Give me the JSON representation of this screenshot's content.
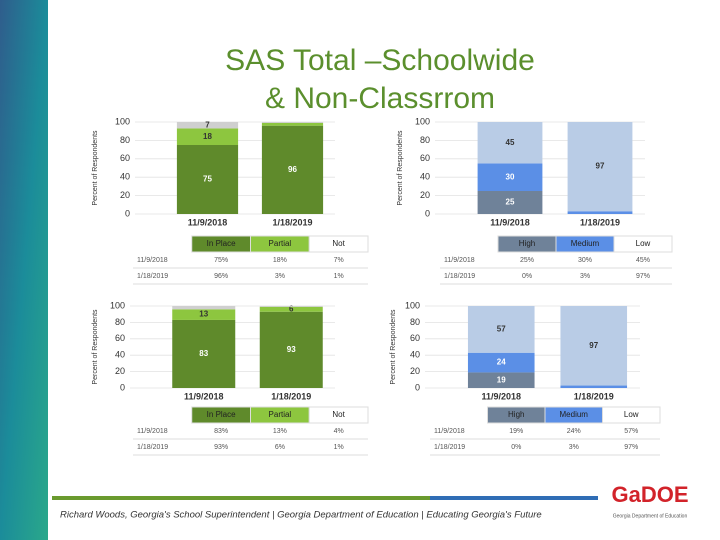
{
  "title": "SAS Total –Schoolwide",
  "title_line2": "& Non-Classrrom",
  "footer": "Richard Woods, Georgia's School Superintendent | Georgia Department of Education | Educating Georgia's Future",
  "logo": "GaDOE",
  "logo_caption": "Georgia Department of Education",
  "chart_data": [
    {
      "type": "bar",
      "stacked": true,
      "ylabel": "Percent of Respondents",
      "categories": [
        "11/9/2018",
        "1/18/2019"
      ],
      "series": [
        {
          "name": "In Place",
          "color": "#5f8a2b",
          "values": [
            75,
            96
          ]
        },
        {
          "name": "Partial",
          "color": "#8dc63f",
          "values": [
            18,
            3
          ]
        },
        {
          "name": "Not",
          "color": "#cfcfcf",
          "values": [
            7,
            1
          ]
        }
      ],
      "ylim": [
        0,
        100
      ],
      "yticks": [
        0,
        20,
        40,
        60,
        80,
        100
      ],
      "grid": true,
      "table": [
        [
          "11/9/2018",
          "75%",
          "18%",
          "7%"
        ],
        [
          "1/18/2019",
          "96%",
          "3%",
          "1%"
        ]
      ]
    },
    {
      "type": "bar",
      "stacked": true,
      "ylabel": "Percent of Respondents",
      "categories": [
        "11/9/2018",
        "1/18/2019"
      ],
      "series": [
        {
          "name": "High",
          "color": "#6f8299",
          "values": [
            25,
            0
          ]
        },
        {
          "name": "Medium",
          "color": "#5b8fe6",
          "values": [
            30,
            3
          ]
        },
        {
          "name": "Low",
          "color": "#b9cce6",
          "values": [
            45,
            97
          ]
        }
      ],
      "ylim": [
        0,
        100
      ],
      "yticks": [
        0,
        20,
        40,
        60,
        80,
        100
      ],
      "grid": true,
      "table": [
        [
          "11/9/2018",
          "25%",
          "30%",
          "45%"
        ],
        [
          "1/18/2019",
          "0%",
          "3%",
          "97%"
        ]
      ]
    },
    {
      "type": "bar",
      "stacked": true,
      "ylabel": "Percent of Respondents",
      "categories": [
        "11/9/2018",
        "1/18/2019"
      ],
      "series": [
        {
          "name": "In Place",
          "color": "#5f8a2b",
          "values": [
            83,
            93
          ]
        },
        {
          "name": "Partial",
          "color": "#8dc63f",
          "values": [
            13,
            6
          ]
        },
        {
          "name": "Not",
          "color": "#cfcfcf",
          "values": [
            4,
            1
          ]
        }
      ],
      "ylim": [
        0,
        100
      ],
      "yticks": [
        0,
        20,
        40,
        60,
        80,
        100
      ],
      "grid": true,
      "table": [
        [
          "11/9/2018",
          "83%",
          "13%",
          "4%"
        ],
        [
          "1/18/2019",
          "93%",
          "6%",
          "1%"
        ]
      ]
    },
    {
      "type": "bar",
      "stacked": true,
      "ylabel": "Percent of Respondents",
      "categories": [
        "11/9/2018",
        "1/18/2019"
      ],
      "series": [
        {
          "name": "High",
          "color": "#6f8299",
          "values": [
            19,
            0
          ]
        },
        {
          "name": "Medium",
          "color": "#5b8fe6",
          "values": [
            24,
            3
          ]
        },
        {
          "name": "Low",
          "color": "#b9cce6",
          "values": [
            57,
            97
          ]
        }
      ],
      "ylim": [
        0,
        100
      ],
      "yticks": [
        0,
        20,
        40,
        60,
        80,
        100
      ],
      "grid": true,
      "table": [
        [
          "11/9/2018",
          "19%",
          "24%",
          "57%"
        ],
        [
          "1/18/2019",
          "0%",
          "3%",
          "97%"
        ]
      ]
    }
  ]
}
